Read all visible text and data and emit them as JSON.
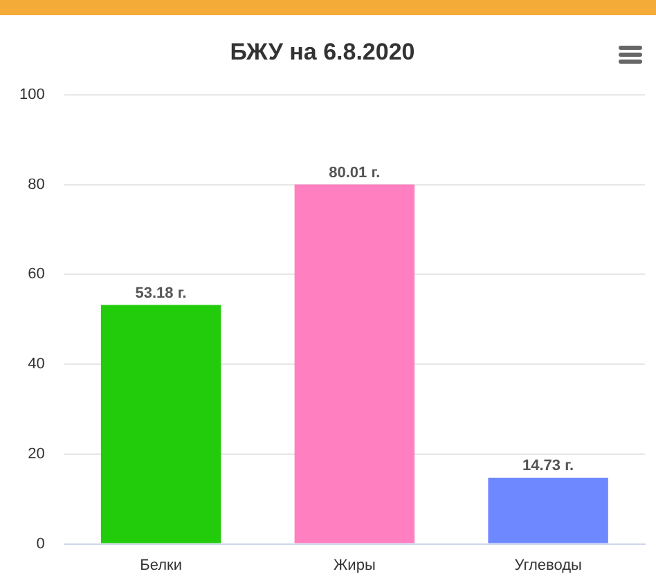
{
  "chart_data": {
    "type": "bar",
    "title": "БЖУ на 6.8.2020",
    "categories": [
      "Белки",
      "Жиры",
      "Углеводы"
    ],
    "values": [
      53.18,
      80.01,
      14.73
    ],
    "colors": [
      "#22cc0a",
      "#ff7fc0",
      "#6e88ff"
    ],
    "value_labels": [
      "53.18 г.",
      "80.01 г.",
      "14.73 г."
    ],
    "ylim": [
      0,
      100
    ],
    "yticks": [
      0,
      20,
      40,
      60,
      80,
      100
    ],
    "grid": "y",
    "legend": false
  }
}
